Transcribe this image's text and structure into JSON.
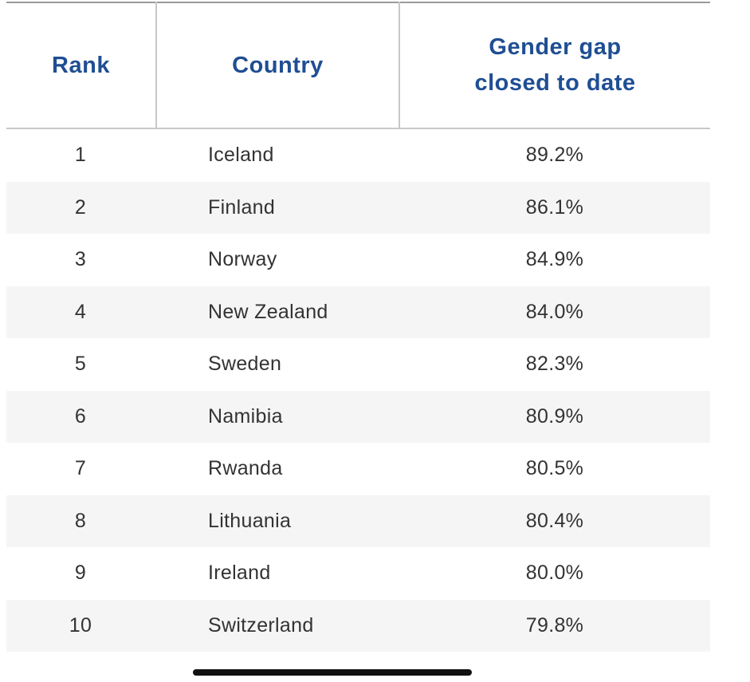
{
  "table": {
    "headers": {
      "rank": "Rank",
      "country": "Country",
      "gap_line1": "Gender gap",
      "gap_line2": "closed to date"
    },
    "rows": [
      {
        "rank": "1",
        "country": "Iceland",
        "gap": "89.2%"
      },
      {
        "rank": "2",
        "country": "Finland",
        "gap": "86.1%"
      },
      {
        "rank": "3",
        "country": "Norway",
        "gap": "84.9%"
      },
      {
        "rank": "4",
        "country": "New Zealand",
        "gap": "84.0%"
      },
      {
        "rank": "5",
        "country": "Sweden",
        "gap": "82.3%"
      },
      {
        "rank": "6",
        "country": "Namibia",
        "gap": "80.9%"
      },
      {
        "rank": "7",
        "country": "Rwanda",
        "gap": "80.5%"
      },
      {
        "rank": "8",
        "country": "Lithuania",
        "gap": "80.4%"
      },
      {
        "rank": "9",
        "country": "Ireland",
        "gap": "80.0%"
      },
      {
        "rank": "10",
        "country": "Switzerland",
        "gap": "79.8%"
      }
    ]
  },
  "colors": {
    "header_text": "#1f4e93",
    "body_text": "#333333",
    "stripe": "#f5f5f5"
  }
}
